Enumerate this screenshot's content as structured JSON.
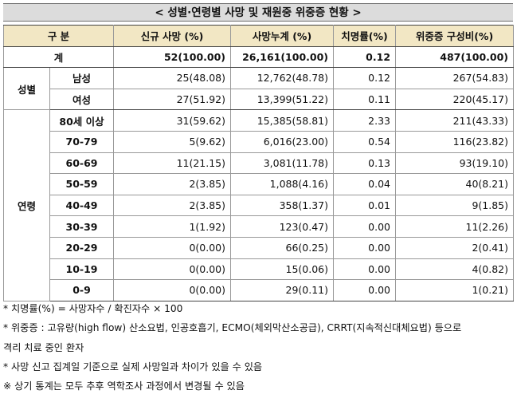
{
  "title": "< 성별·연령별 사망 및 재원중 위중증 현황 >",
  "headers": [
    "구 분",
    "신규 사망      (%)",
    "사망누계      (%)",
    "치명률(%)",
    "위중증   구성비(%)"
  ],
  "total": {
    "label": "계",
    "cells": [
      "52(100.00)",
      "26,161(100.00)",
      "0.12",
      "487(100.00)"
    ]
  },
  "sex": {
    "group": "성별",
    "rows": [
      {
        "label": "남성",
        "cells": [
          "25(48.08)",
          "12,762(48.78)",
          "0.12",
          "267(54.83)"
        ]
      },
      {
        "label": "여성",
        "cells": [
          "27(51.92)",
          "13,399(51.22)",
          "0.11",
          "220(45.17)"
        ]
      }
    ]
  },
  "age": {
    "group": "연령",
    "rows": [
      {
        "label": "80세 이상",
        "cells": [
          "31(59.62)",
          "15,385(58.81)",
          "2.33",
          "211(43.33)"
        ]
      },
      {
        "label": "70-79",
        "cells": [
          "5(9.62)",
          "6,016(23.00)",
          "0.54",
          "116(23.82)"
        ]
      },
      {
        "label": "60-69",
        "cells": [
          "11(21.15)",
          "3,081(11.78)",
          "0.13",
          "93(19.10)"
        ]
      },
      {
        "label": "50-59",
        "cells": [
          "2(3.85)",
          "1,088(4.16)",
          "0.04",
          "40(8.21)"
        ]
      },
      {
        "label": "40-49",
        "cells": [
          "2(3.85)",
          "358(1.37)",
          "0.01",
          "9(1.85)"
        ]
      },
      {
        "label": "30-39",
        "cells": [
          "1(1.92)",
          "123(0.47)",
          "0.00",
          "11(2.26)"
        ]
      },
      {
        "label": "20-29",
        "cells": [
          "0(0.00)",
          "66(0.25)",
          "0.00",
          "2(0.41)"
        ]
      },
      {
        "label": "10-19",
        "cells": [
          "0(0.00)",
          "15(0.06)",
          "0.00",
          "4(0.82)"
        ]
      },
      {
        "label": "0-9",
        "cells": [
          "0(0.00)",
          "29(0.11)",
          "0.00",
          "1(0.21)"
        ]
      }
    ]
  },
  "notes": [
    "* 치명률(%) = 사망자수 / 확진자수 × 100",
    "* 위중증 : 고유량(high flow) 산소요법, 인공호흡기, ECMO(체외막산소공급), CRRT(지속적신대체요법) 등으로",
    "격리 치료 중인 환자",
    "* 사망 신고 집계일 기준으로 실제 사망일과 차이가 있을 수 있음",
    "※ 상기 통계는 모두 추후 역학조사 과정에서 변경될 수 있음"
  ]
}
